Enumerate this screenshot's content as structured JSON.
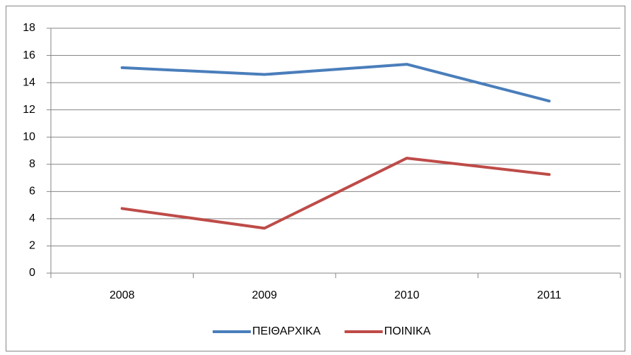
{
  "chart_data": {
    "type": "line",
    "categories": [
      "2008",
      "2009",
      "2010",
      "2011"
    ],
    "series": [
      {
        "name": "ΠΕΙΘΑΡΧΙΚΑ",
        "color": "#4a7ebb",
        "values": [
          15.1,
          14.6,
          15.35,
          12.65
        ]
      },
      {
        "name": "ΠΟΙΝΙΚΑ",
        "color": "#be4b48",
        "values": [
          4.75,
          3.3,
          8.45,
          7.25
        ]
      }
    ],
    "ylim": [
      0,
      18
    ],
    "yticks": [
      0,
      2,
      4,
      6,
      8,
      10,
      12,
      14,
      16,
      18
    ],
    "grid": true,
    "legend": "bottom"
  }
}
